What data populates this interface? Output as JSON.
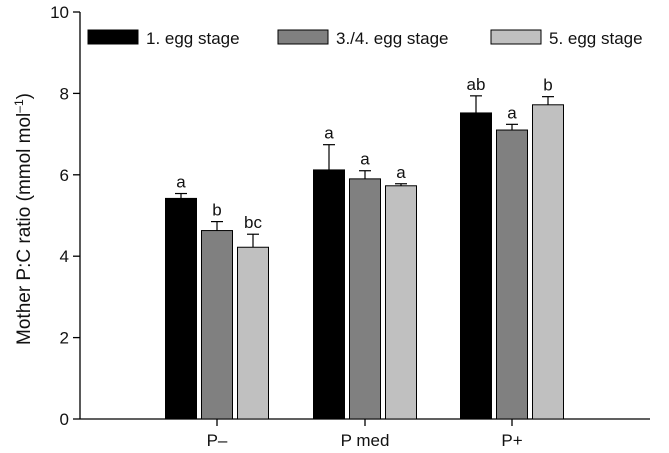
{
  "chart_data": {
    "type": "bar",
    "title": "",
    "xlabel": "",
    "ylabel": "Mother P:C ratio (mmol mol",
    "ylabel_superscript": "–1",
    "ylabel_suffix": ")",
    "ylim": [
      0,
      10
    ],
    "yticks": [
      0,
      2,
      4,
      6,
      8,
      10
    ],
    "ytick_labels": [
      "0",
      "2",
      "4",
      "6",
      "8",
      "10"
    ],
    "categories": [
      "P–",
      "P med",
      "P+"
    ],
    "series": [
      {
        "name": "1. egg stage",
        "color": "#000000",
        "values": [
          5.42,
          6.12,
          7.52
        ],
        "errors": [
          0.12,
          0.62,
          0.42
        ],
        "labels": [
          "a",
          "a",
          "ab"
        ]
      },
      {
        "name": "3./4. egg stage",
        "color": "#808080",
        "values": [
          4.63,
          5.9,
          7.1
        ],
        "errors": [
          0.22,
          0.2,
          0.14
        ],
        "labels": [
          "b",
          "a",
          "a"
        ]
      },
      {
        "name": "5. egg stage",
        "color": "#c0c0c0",
        "values": [
          4.22,
          5.73,
          7.72
        ],
        "errors": [
          0.32,
          0.05,
          0.2
        ],
        "labels": [
          "bc",
          "a",
          "b"
        ]
      }
    ],
    "legend_position": "top",
    "grid": false
  }
}
